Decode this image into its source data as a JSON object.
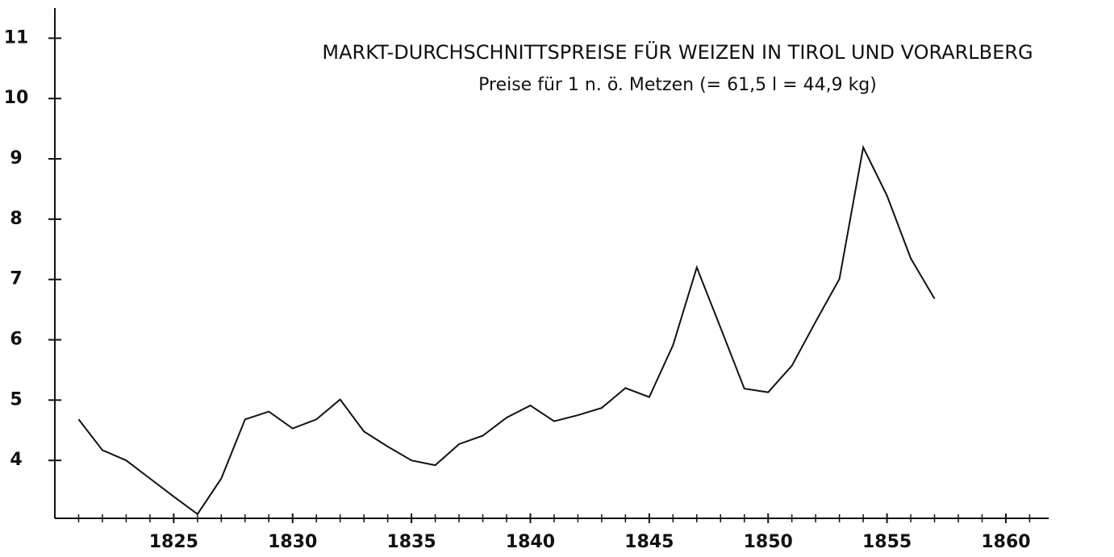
{
  "chart_data": {
    "type": "line",
    "title": "MARKT-DURCHSCHNITTSPREISE FÜR WEIZEN IN TIROL UND VORARLBERG",
    "subtitle": "Preise für 1 n. ö. Metzen (= 61,5 l = 44,9 kg)",
    "x": [
      1821,
      1822,
      1823,
      1824,
      1825,
      1826,
      1827,
      1828,
      1829,
      1830,
      1831,
      1832,
      1833,
      1834,
      1835,
      1836,
      1837,
      1838,
      1839,
      1840,
      1841,
      1842,
      1843,
      1844,
      1845,
      1846,
      1847,
      1848,
      1849,
      1850,
      1851,
      1852,
      1853,
      1854,
      1855,
      1856,
      1857
    ],
    "series": [
      {
        "name": "Weizen",
        "color": "#111111",
        "values": [
          4.68,
          4.17,
          4.0,
          3.7,
          3.4,
          3.11,
          3.7,
          4.68,
          4.81,
          4.53,
          4.68,
          5.01,
          4.48,
          4.23,
          4.0,
          3.92,
          4.27,
          4.41,
          4.71,
          4.91,
          4.65,
          4.75,
          4.87,
          5.2,
          5.05,
          5.91,
          7.2,
          6.2,
          5.19,
          5.13,
          5.57,
          6.3,
          7.01,
          9.19,
          8.39,
          7.35,
          6.68
        ]
      }
    ],
    "xlim": [
      1820,
      1861.8
    ],
    "xticks": [
      1825,
      1830,
      1835,
      1840,
      1845,
      1850,
      1855,
      1860
    ],
    "xminor_ticks": [
      1821,
      1822,
      1823,
      1824,
      1826,
      1827,
      1828,
      1829,
      1831,
      1832,
      1833,
      1834,
      1836,
      1837,
      1838,
      1839,
      1841,
      1842,
      1843,
      1844,
      1846,
      1847,
      1848,
      1849,
      1851,
      1852,
      1853,
      1854,
      1856,
      1857,
      1858,
      1859,
      1861
    ],
    "ylim": [
      3.04,
      11.5
    ],
    "yticks": [
      4,
      5,
      6,
      7,
      8,
      9,
      10,
      11
    ]
  }
}
